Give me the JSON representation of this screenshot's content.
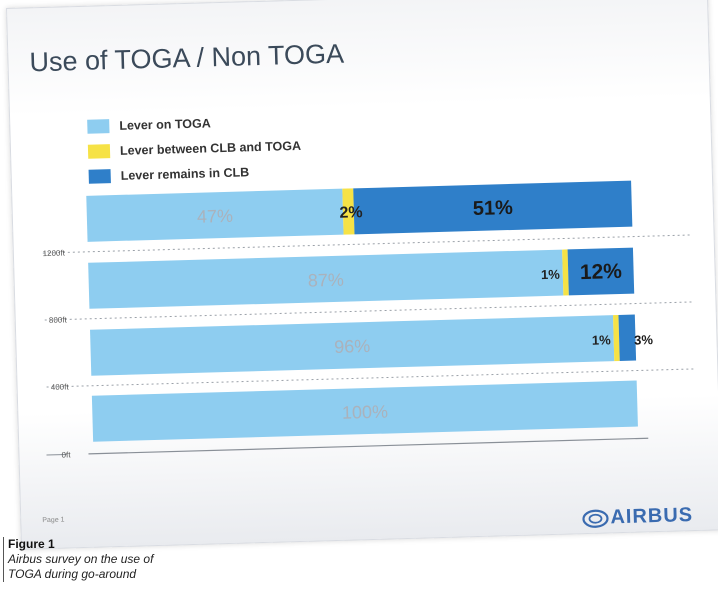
{
  "slide": {
    "title": "Use of TOGA / Non TOGA",
    "page_label": "Page 1",
    "logo_text": "AIRBUS",
    "logo_icon": "airbus-swirl-icon"
  },
  "caption": {
    "title": "Figure 1",
    "text": "Airbus survey on the use of TOGA during go-around"
  },
  "colors": {
    "lever_on_toga": "#8ecdf0",
    "lever_between": "#f6e246",
    "lever_remains_clb": "#2f7fc9",
    "logo": "#3a6bb0"
  },
  "chart_data": {
    "type": "bar",
    "orientation": "horizontal",
    "stacked": true,
    "title": "Use of TOGA / Non TOGA",
    "legend_position": "top-left",
    "series": [
      {
        "name": "Lever  on TOGA",
        "values": [
          47,
          87,
          96,
          100
        ],
        "labels": [
          "47%",
          "87%",
          "96%",
          "100%"
        ]
      },
      {
        "name": "Lever between CLB and TOGA",
        "values": [
          2,
          1,
          1,
          0
        ],
        "labels": [
          "2%",
          "1%",
          "1%",
          ""
        ]
      },
      {
        "name": "Lever remains in CLB",
        "values": [
          51,
          12,
          3,
          0
        ],
        "labels": [
          "51%",
          "12%",
          "3%",
          ""
        ]
      }
    ],
    "y_ticks": [
      "1200ft",
      "800ft",
      "400ft",
      "0ft"
    ],
    "grid": "dotted lines at altitude ticks"
  }
}
